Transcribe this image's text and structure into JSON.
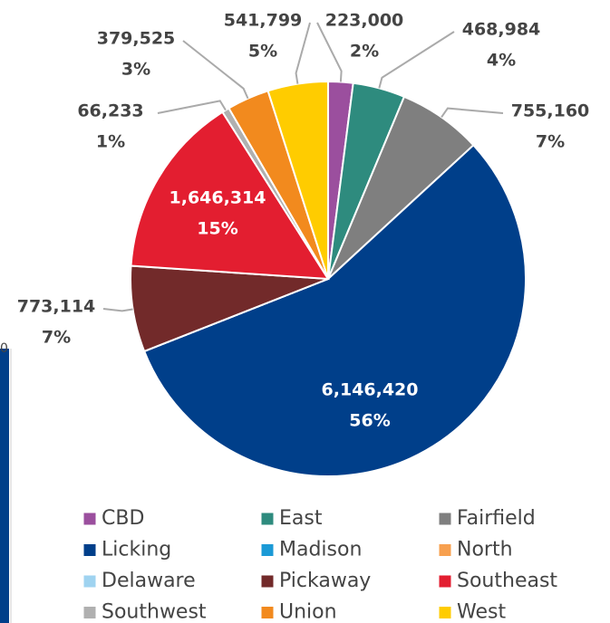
{
  "chart_data": {
    "type": "pie",
    "categories": [
      "CBD",
      "East",
      "Fairfield",
      "Licking",
      "Madison",
      "North",
      "Delaware",
      "Pickaway",
      "Southeast",
      "Southwest",
      "Union",
      "West"
    ],
    "values": [
      223000,
      468984,
      755160,
      6146420,
      0,
      0,
      0,
      773114,
      1646314,
      66233,
      379525,
      541799
    ],
    "value_labels": [
      "223,000",
      "468,984",
      "755,160",
      "6,146,420",
      null,
      null,
      null,
      "773,114",
      "1,646,314",
      "66,233",
      "379,525",
      "541,799"
    ],
    "percent_labels": [
      "2%",
      "4%",
      "7%",
      "56%",
      null,
      null,
      null,
      "7%",
      "15%",
      "1%",
      "3%",
      "5%"
    ],
    "colors": [
      "#9b4f9e",
      "#2e8b7e",
      "#7f7f7f",
      "#003f8a",
      "#1b9ad6",
      "#f7a04f",
      "#9fd3f0",
      "#722a2a",
      "#e31e30",
      "#b0b0b0",
      "#f28a1e",
      "#ffcc00"
    ],
    "background_axis_label": "0"
  }
}
